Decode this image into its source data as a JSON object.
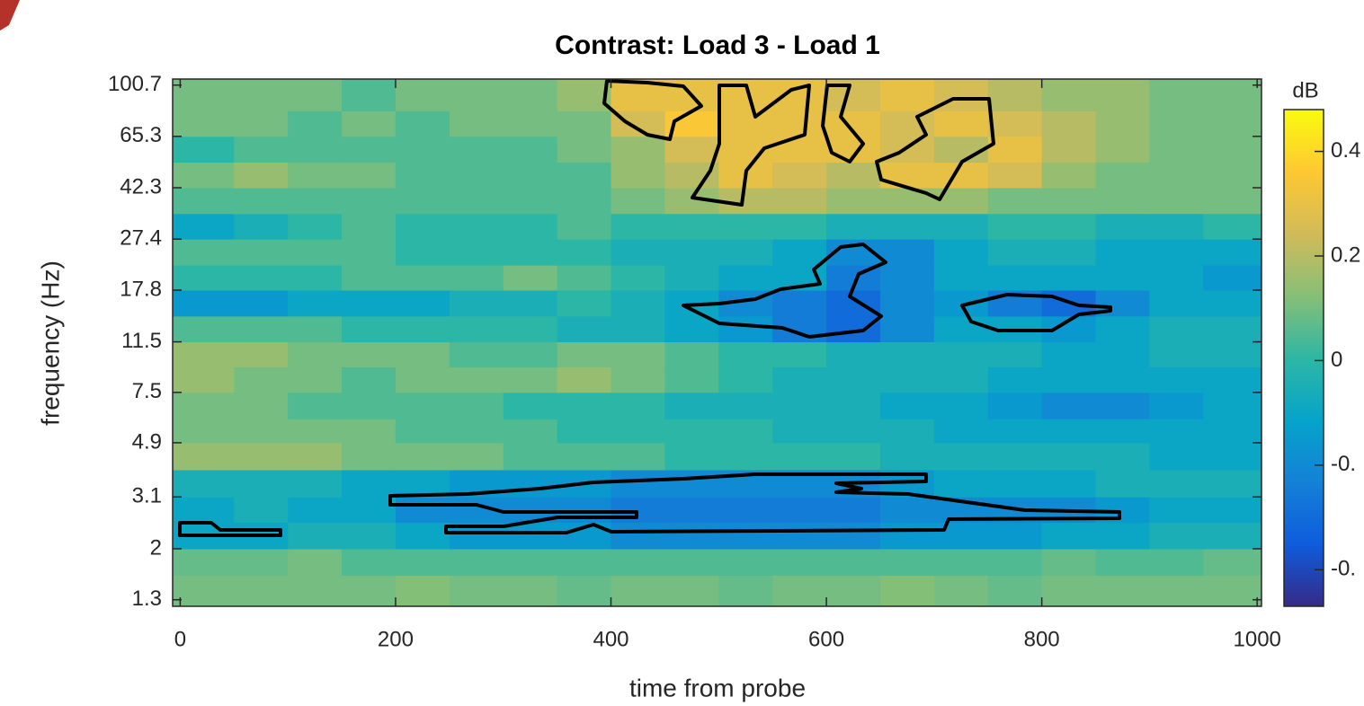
{
  "chart_data": {
    "type": "heatmap",
    "title": "Contrast: Load 3 - Load 1",
    "x_label": "time from probe",
    "y_label": "frequency  (Hz)",
    "colorbar_label": "dB",
    "xlim": [
      -7,
      1004
    ],
    "xticks": [
      0,
      200,
      400,
      600,
      800,
      1000
    ],
    "ylim": [
      1.23,
      106
    ],
    "y_scale": "log",
    "yticks": [
      1.3,
      2,
      3.1,
      4.9,
      7.5,
      11.5,
      17.8,
      27.4,
      42.3,
      65.3,
      100.7
    ],
    "clim": [
      -0.47,
      0.48
    ],
    "cticks": [
      {
        "value": -0.4,
        "label": "-0."
      },
      {
        "value": -0.2,
        "label": "-0."
      },
      0,
      0.2,
      0.4
    ],
    "colormap": [
      "#352a87",
      "#0f5cdd",
      "#1481d6",
      "#06a4ca",
      "#2eb7a4",
      "#87bf77",
      "#d1bb59",
      "#fec832",
      "#f9fb0e"
    ],
    "x": [
      -7,
      50,
      100,
      150,
      200,
      250,
      300,
      350,
      400,
      450,
      500,
      550,
      600,
      650,
      700,
      750,
      800,
      850,
      900,
      950,
      1004
    ],
    "y": [
      1.23,
      1.6,
      2,
      2.5,
      3.1,
      3.9,
      4.9,
      6,
      7.5,
      9.3,
      11.5,
      14.3,
      17.8,
      22,
      27.4,
      34,
      42.3,
      52.5,
      65.3,
      81,
      106
    ],
    "z": [
      [
        0.1,
        0.1,
        0.1,
        0.1,
        0.12,
        0.1,
        0.1,
        0.08,
        0.1,
        0.1,
        0.08,
        0.1,
        0.1,
        0.12,
        0.1,
        0.08,
        0.1,
        0.1,
        0.1,
        0.1
      ],
      [
        0.08,
        0.08,
        0.1,
        0.05,
        0.05,
        0.05,
        0.05,
        0.05,
        0.05,
        0.05,
        0.05,
        0.05,
        0.05,
        0.05,
        0.05,
        0.05,
        0.08,
        0.05,
        0.05,
        0.08
      ],
      [
        -0.1,
        -0.1,
        -0.05,
        -0.05,
        -0.1,
        -0.15,
        -0.15,
        -0.15,
        -0.2,
        -0.2,
        -0.2,
        -0.2,
        -0.2,
        -0.15,
        -0.15,
        -0.15,
        -0.1,
        -0.1,
        -0.05,
        -0.05
      ],
      [
        -0.1,
        -0.05,
        -0.1,
        -0.1,
        -0.2,
        -0.2,
        -0.2,
        -0.2,
        -0.25,
        -0.25,
        -0.25,
        -0.25,
        -0.25,
        -0.2,
        -0.2,
        -0.2,
        -0.2,
        -0.15,
        -0.1,
        -0.1
      ],
      [
        -0.05,
        -0.05,
        -0.05,
        -0.1,
        -0.1,
        -0.15,
        -0.15,
        -0.15,
        -0.2,
        -0.2,
        -0.2,
        -0.2,
        -0.2,
        -0.15,
        -0.1,
        -0.1,
        -0.1,
        -0.05,
        -0.05,
        -0.05
      ],
      [
        0.15,
        0.15,
        0.15,
        0.1,
        0.1,
        0.1,
        0.05,
        0.05,
        0.05,
        0,
        0,
        0,
        0,
        -0.05,
        -0.05,
        -0.05,
        -0.05,
        -0.05,
        -0.1,
        -0.1
      ],
      [
        0.1,
        0.1,
        0.1,
        0.1,
        0.05,
        0.05,
        0.05,
        0,
        0,
        0,
        0,
        -0.05,
        -0.05,
        -0.05,
        -0.1,
        -0.1,
        -0.1,
        -0.1,
        -0.1,
        -0.1
      ],
      [
        0.1,
        0.1,
        0.05,
        0.05,
        0.05,
        0.05,
        0,
        0,
        0,
        -0.05,
        -0.05,
        -0.05,
        -0.05,
        -0.1,
        -0.1,
        -0.15,
        -0.2,
        -0.2,
        -0.15,
        -0.1
      ],
      [
        0.15,
        0.1,
        0.1,
        0.05,
        0.1,
        0.1,
        0.1,
        0.15,
        0.1,
        0.05,
        0,
        -0.05,
        -0.05,
        -0.05,
        -0.05,
        -0.1,
        -0.1,
        -0.1,
        -0.1,
        -0.1
      ],
      [
        0.15,
        0.15,
        0.1,
        0.1,
        0.1,
        0.05,
        0.05,
        0.1,
        0.1,
        0.05,
        0,
        0,
        -0.05,
        -0.05,
        -0.05,
        -0.05,
        -0.1,
        -0.1,
        -0.05,
        -0.05
      ],
      [
        0.05,
        0.05,
        0.05,
        0,
        0,
        0,
        0,
        -0.05,
        -0.05,
        -0.1,
        -0.15,
        -0.25,
        -0.3,
        -0.2,
        -0.1,
        -0.1,
        -0.15,
        -0.1,
        -0.05,
        -0.05
      ],
      [
        -0.15,
        -0.15,
        -0.1,
        -0.1,
        -0.1,
        -0.05,
        -0.05,
        0,
        -0.05,
        -0.1,
        -0.2,
        -0.25,
        -0.3,
        -0.2,
        -0.15,
        -0.25,
        -0.3,
        -0.2,
        -0.1,
        -0.1
      ],
      [
        0,
        0,
        0,
        0.05,
        0.05,
        0.05,
        0.1,
        0.05,
        0,
        -0.05,
        -0.1,
        -0.1,
        -0.25,
        -0.2,
        -0.1,
        -0.1,
        -0.1,
        -0.1,
        -0.1,
        -0.15
      ],
      [
        0.05,
        0.05,
        0.05,
        0.05,
        0,
        0,
        0,
        0,
        -0.05,
        -0.05,
        -0.05,
        -0.1,
        -0.2,
        -0.2,
        -0.1,
        -0.05,
        -0.05,
        -0.1,
        -0.1,
        -0.1
      ],
      [
        -0.1,
        -0.05,
        0,
        0.05,
        0,
        0,
        0,
        0.05,
        0,
        0,
        0,
        0,
        -0.05,
        -0.05,
        -0.05,
        0,
        0,
        -0.05,
        -0.05,
        0
      ],
      [
        0.05,
        0.05,
        0.05,
        0.05,
        0.05,
        0.05,
        0.05,
        0.05,
        0.1,
        0.15,
        0.2,
        0.2,
        0.15,
        0.15,
        0.15,
        0.1,
        0.1,
        0.1,
        0.1,
        0.1
      ],
      [
        0.1,
        0.15,
        0.1,
        0.1,
        0.05,
        0.05,
        0.05,
        0.05,
        0.15,
        0.2,
        0.3,
        0.25,
        0.2,
        0.3,
        0.3,
        0.25,
        0.15,
        0.1,
        0.1,
        0.1
      ],
      [
        0,
        0.05,
        0.05,
        0.05,
        0.05,
        0.05,
        0.05,
        0.1,
        0.15,
        0.25,
        0.3,
        0.3,
        0.3,
        0.25,
        0.2,
        0.3,
        0.2,
        0.15,
        0.1,
        0.1
      ],
      [
        0.1,
        0.1,
        0.05,
        0.1,
        0.05,
        0.1,
        0.1,
        0.1,
        0.25,
        0.35,
        0.3,
        0.3,
        0.3,
        0.25,
        0.3,
        0.25,
        0.2,
        0.15,
        0.1,
        0.1
      ],
      [
        0.1,
        0.1,
        0.1,
        0.05,
        0.1,
        0.1,
        0.1,
        0.15,
        0.3,
        0.3,
        0.3,
        0.3,
        0.25,
        0.3,
        0.25,
        0.2,
        0.15,
        0.15,
        0.1,
        0.1
      ]
    ]
  }
}
